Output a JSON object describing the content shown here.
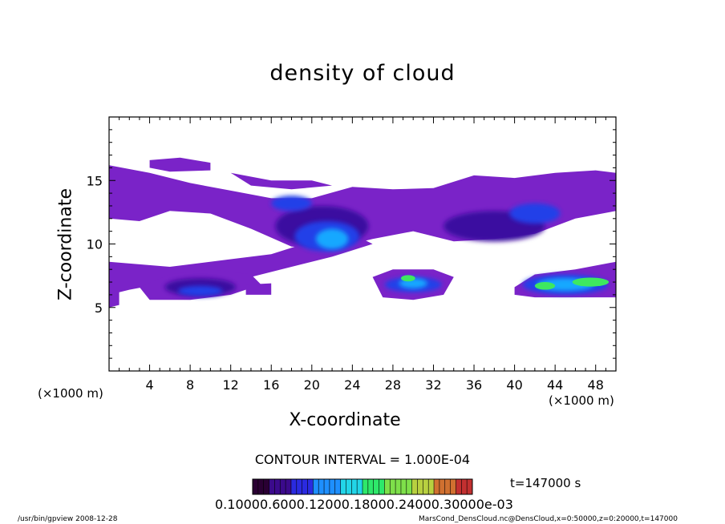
{
  "chart_data": {
    "type": "heatmap",
    "title": "density of cloud",
    "xlabel": "X-coordinate",
    "ylabel": "Z-coordinate",
    "x_unit": "(×1000 m)",
    "y_unit": "(×1000 m)",
    "xlim": [
      0,
      50
    ],
    "ylim": [
      0,
      20
    ],
    "x_ticks": [
      4,
      8,
      12,
      16,
      20,
      24,
      28,
      32,
      36,
      40,
      44,
      48
    ],
    "y_ticks": [
      5,
      10,
      15
    ],
    "contour_interval": "CONTOUR INTERVAL = 1.000E-04",
    "time_label": "t=147000 s",
    "colorbar_labels": "0.10000.6000.12000.18000.24000.30000e-03",
    "colorbar_range": [
      0,
      0.0003
    ],
    "colormap": [
      "#2a0033",
      "#3b0a8c",
      "#2a2ae0",
      "#1e8fff",
      "#22d5e8",
      "#2ee86a",
      "#7ee04a",
      "#b8d040",
      "#d07030",
      "#c23030"
    ],
    "footer_left": "/usr/bin/gpview   2008-12-28",
    "footer_right": "MarsCond_DensCloud.nc@DensCloud,x=0:50000,z=0:20000,t=147000"
  }
}
